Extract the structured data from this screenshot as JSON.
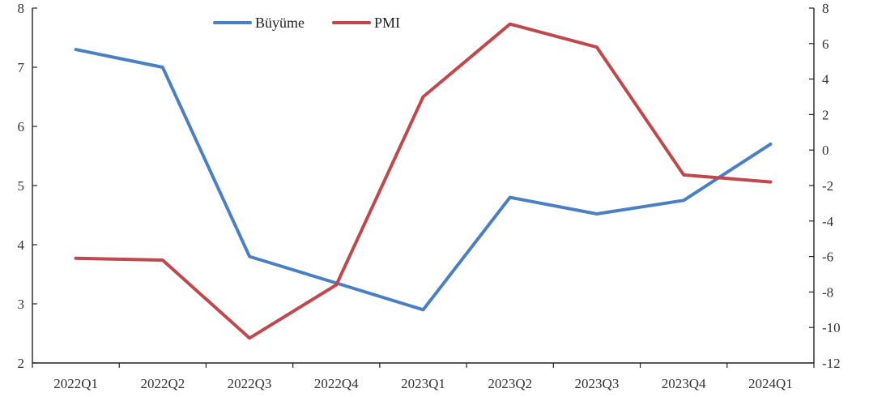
{
  "chart_data": {
    "type": "line",
    "title": "",
    "xlabel": "",
    "ylabel_left": "",
    "ylabel_right": "",
    "categories": [
      "2022Q1",
      "2022Q2",
      "2022Q3",
      "2022Q4",
      "2023Q1",
      "2023Q2",
      "2023Q3",
      "2023Q4",
      "2024Q1"
    ],
    "y_left": {
      "min": 2,
      "max": 8,
      "ticks": [
        "2",
        "3",
        "4",
        "5",
        "6",
        "7",
        "8"
      ]
    },
    "y_right": {
      "min": -12,
      "max": 8,
      "ticks": [
        "-12",
        "-10",
        "-8",
        "-6",
        "-4",
        "-2",
        "0",
        "2",
        "4",
        "6",
        "8"
      ]
    },
    "grid": false,
    "legend": {
      "placement": "top-center"
    },
    "series": [
      {
        "name": "Büyüme",
        "axis": "left",
        "color": "#4a7fc4",
        "values": [
          7.3,
          7.0,
          3.8,
          3.35,
          2.9,
          4.8,
          4.52,
          4.75,
          5.7
        ]
      },
      {
        "name": "PMI",
        "axis": "right",
        "color": "#c0474c",
        "values": [
          -6.1,
          -6.2,
          -10.6,
          -7.6,
          3.0,
          7.1,
          5.8,
          -1.4,
          -1.8
        ]
      }
    ]
  }
}
